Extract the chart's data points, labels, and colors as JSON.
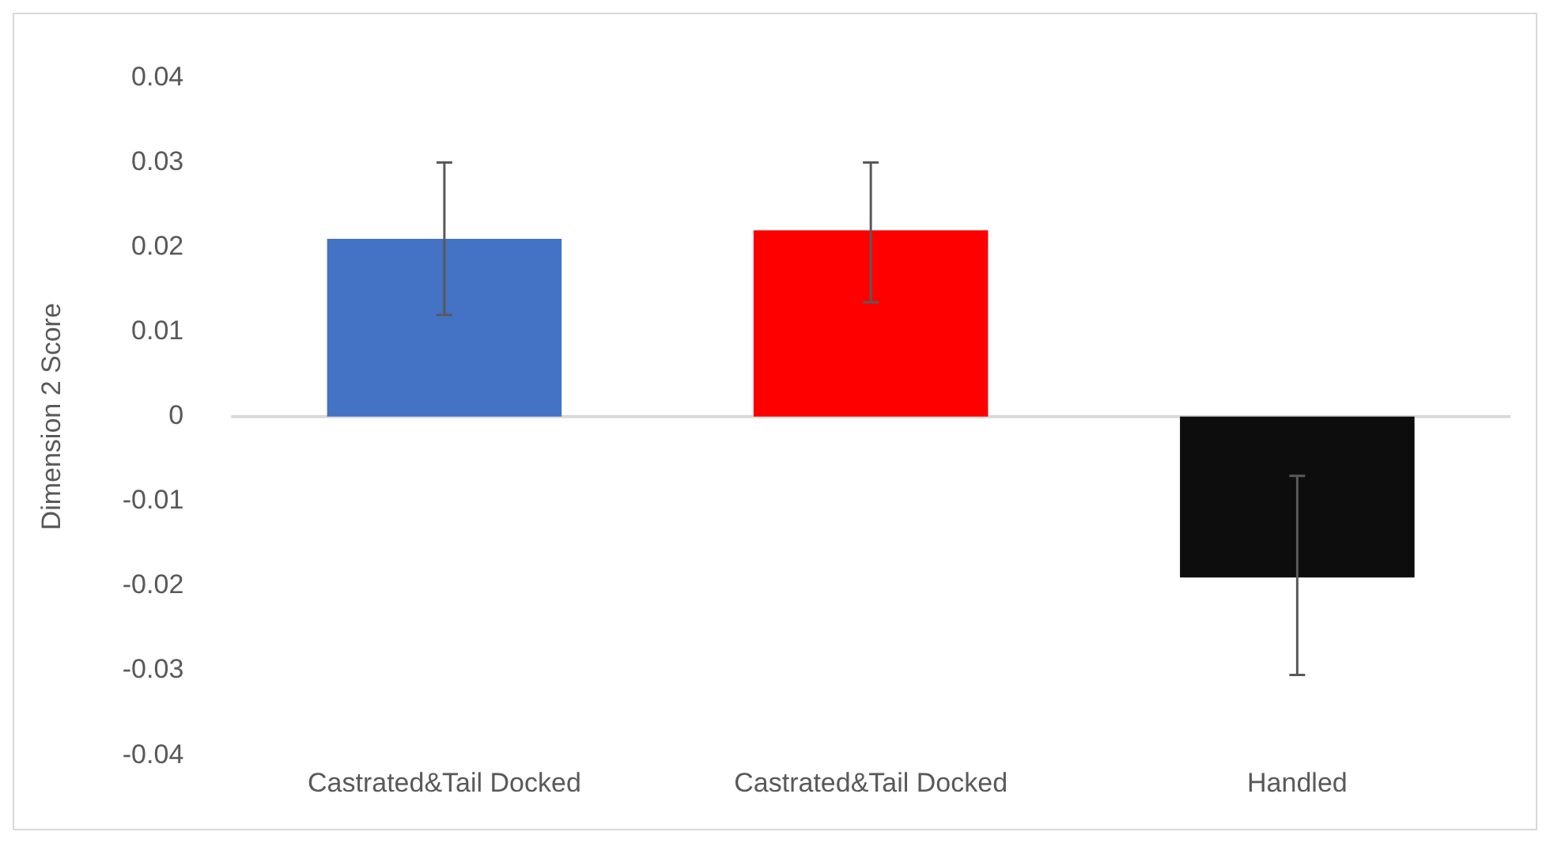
{
  "chart_data": {
    "type": "bar",
    "ylabel": "Dimension 2 Score",
    "categories": [
      "Castrated&Tail Docked",
      "Castrated&Tail Docked",
      "Handled"
    ],
    "values": [
      0.021,
      0.022,
      -0.019
    ],
    "colors": [
      "#4472c4",
      "#ff0000",
      "#0d0d0d"
    ],
    "errors": [
      [
        0.012,
        0.03
      ],
      [
        0.0135,
        0.03
      ],
      [
        -0.0305,
        -0.007
      ]
    ],
    "ylim": [
      -0.04,
      0.04
    ],
    "yticks": [
      -0.04,
      -0.03,
      -0.02,
      -0.01,
      0,
      0.01,
      0.02,
      0.03,
      0.04
    ],
    "ref_lines": [
      {
        "axis": "y",
        "value": 0,
        "color": "#d9d9d9"
      }
    ],
    "grid": false,
    "legend": false
  }
}
